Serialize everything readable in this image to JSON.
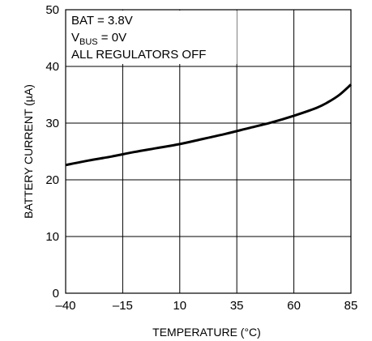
{
  "chart_data": {
    "type": "line",
    "title": "",
    "xlabel": "TEMPERATURE (°C)",
    "ylabel": "BATTERY CURRENT (µA)",
    "xlim": [
      -40,
      85
    ],
    "ylim": [
      0,
      50
    ],
    "x_ticks": [
      -40,
      -15,
      10,
      35,
      60,
      85
    ],
    "x_tick_labels": [
      "–40",
      "–15",
      "10",
      "35",
      "60",
      "85"
    ],
    "y_ticks": [
      0,
      10,
      20,
      30,
      40,
      50
    ],
    "y_tick_labels": [
      "0",
      "10",
      "20",
      "30",
      "40",
      "50"
    ],
    "grid": true,
    "annotations": [
      {
        "prefix": "BAT = 3.8V",
        "sub": "",
        "suffix": ""
      },
      {
        "prefix": "V",
        "sub": "BUS",
        "suffix": " = 0V"
      },
      {
        "prefix": "ALL REGULATORS OFF",
        "sub": "",
        "suffix": ""
      }
    ],
    "series": [
      {
        "x": [
          -40,
          -30,
          -20,
          -10,
          0,
          10,
          20,
          30,
          40,
          50,
          60,
          70,
          75,
          80,
          85
        ],
        "values": [
          22.6,
          23.4,
          24.1,
          24.9,
          25.6,
          26.3,
          27.2,
          28.1,
          29.1,
          30.1,
          31.3,
          32.7,
          33.7,
          35.0,
          36.8
        ]
      }
    ],
    "colors": {
      "line": "#000000",
      "grid": "#000000",
      "frame": "#000000"
    }
  }
}
